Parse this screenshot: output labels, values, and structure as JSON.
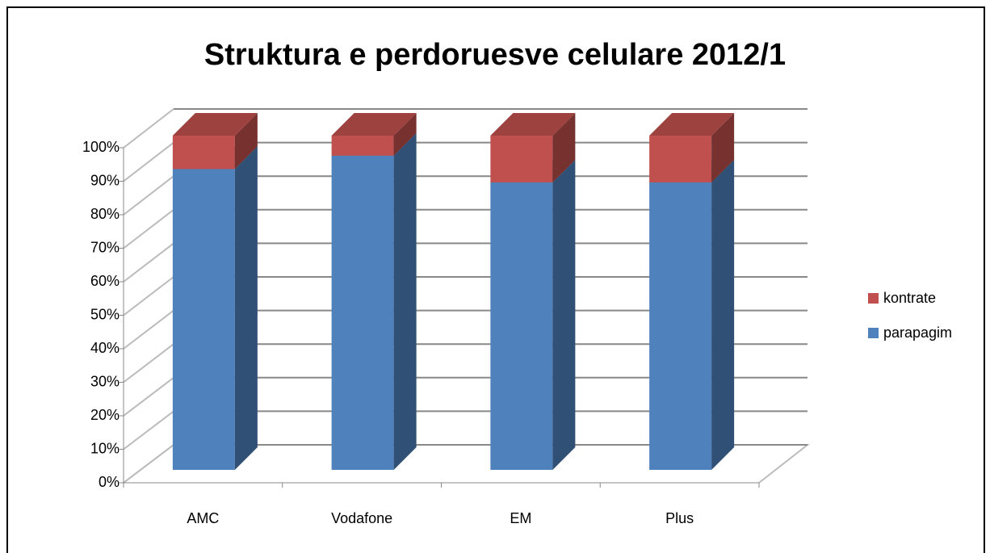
{
  "chart_data": {
    "type": "bar3d_stacked",
    "title": "Struktura e perdoruesve celulare 2012/1",
    "categories": [
      "AMC",
      "Vodafone",
      "EM",
      "Plus"
    ],
    "series": [
      {
        "name": "parapagim",
        "color": "#4f81bd",
        "values": [
          90,
          94,
          86,
          86
        ]
      },
      {
        "name": "kontrate",
        "color": "#c0504d",
        "values": [
          10,
          6,
          14,
          14
        ]
      }
    ],
    "ylim": [
      0,
      100
    ],
    "yticks": [
      {
        "value": 0,
        "label": "0%"
      },
      {
        "value": 10,
        "label": "10%"
      },
      {
        "value": 20,
        "label": "20%"
      },
      {
        "value": 30,
        "label": "30%"
      },
      {
        "value": 40,
        "label": "40%"
      },
      {
        "value": 50,
        "label": "50%"
      },
      {
        "value": 60,
        "label": "60%"
      },
      {
        "value": 70,
        "label": "70%"
      },
      {
        "value": 80,
        "label": "80%"
      },
      {
        "value": 90,
        "label": "90%"
      },
      {
        "value": 100,
        "label": "100%"
      }
    ],
    "grid": true,
    "legend": "right"
  }
}
